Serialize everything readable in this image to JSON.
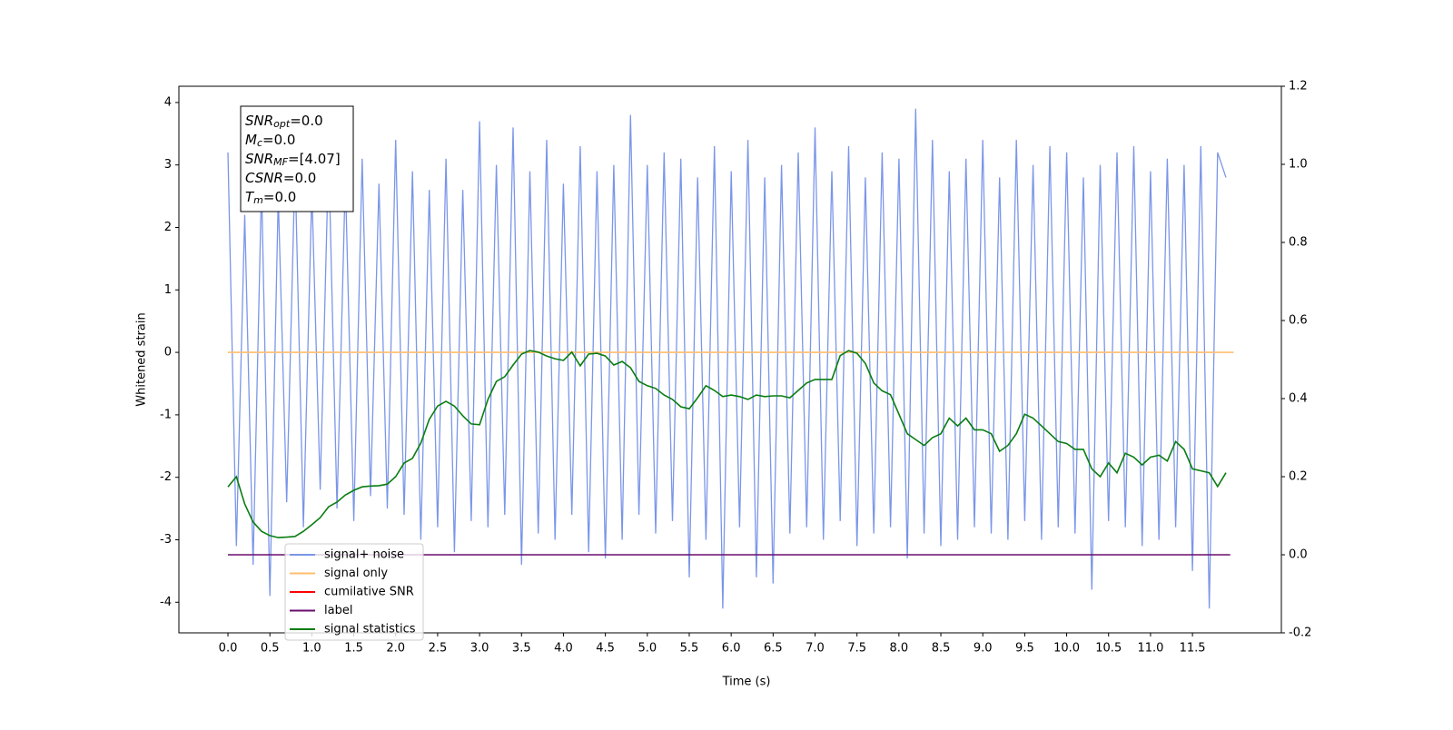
{
  "chart_data": {
    "type": "line",
    "xlabel": "Time (s)",
    "ylabel": "Whitened strain",
    "xlim": [
      -0.585,
      12.56
    ],
    "ylim": [
      -4.49,
      4.26
    ],
    "y2lim": [
      -0.2,
      1.2
    ],
    "xticks": [
      {
        "value": 0,
        "label": "0.0"
      },
      0.5,
      {
        "value": 1,
        "label": "1.0"
      },
      1.5,
      {
        "value": 2,
        "label": "2.0"
      },
      2.5,
      {
        "value": 3,
        "label": "3.0"
      },
      3.5,
      {
        "value": 4,
        "label": "4.0"
      },
      4.5,
      {
        "value": 5,
        "label": "5.0"
      },
      5.5,
      {
        "value": 6,
        "label": "6.0"
      },
      6.5,
      {
        "value": 7,
        "label": "7.0"
      },
      7.5,
      {
        "value": 8,
        "label": "8.0"
      },
      8.5,
      {
        "value": 9,
        "label": "9.0"
      },
      9.5,
      {
        "value": 10,
        "label": "10.0"
      },
      10.5,
      {
        "value": 11,
        "label": "11.0"
      },
      11.5
    ],
    "yticks": [
      -4,
      -3,
      -2,
      -1,
      0,
      1,
      2,
      3,
      4
    ],
    "y2ticks": [
      -0.2,
      {
        "value": 0,
        "label": "0.0"
      },
      0.2,
      0.4,
      0.6,
      0.8,
      {
        "value": 1,
        "label": "1.0"
      },
      1.2
    ],
    "x": [
      0,
      0.1,
      0.2,
      0.3,
      0.4,
      0.5,
      0.6,
      0.7,
      0.8,
      0.9,
      1,
      1.1,
      1.2,
      1.3,
      1.4,
      1.5,
      1.6,
      1.7,
      1.8,
      1.9,
      2,
      2.1,
      2.2,
      2.3,
      2.4,
      2.5,
      2.6,
      2.7,
      2.8,
      2.9,
      3,
      3.1,
      3.2,
      3.3,
      3.4,
      3.5,
      3.6,
      3.7,
      3.8,
      3.9,
      4,
      4.1,
      4.2,
      4.3,
      4.4,
      4.5,
      4.6,
      4.7,
      4.8,
      4.9,
      5,
      5.1,
      5.2,
      5.3,
      5.4,
      5.5,
      5.6,
      5.7,
      5.8,
      5.9,
      6,
      6.1,
      6.2,
      6.3,
      6.4,
      6.5,
      6.6,
      6.7,
      6.8,
      6.9,
      7,
      7.1,
      7.2,
      7.3,
      7.4,
      7.5,
      7.6,
      7.7,
      7.8,
      7.9,
      8,
      8.1,
      8.2,
      8.3,
      8.4,
      8.5,
      8.6,
      8.7,
      8.8,
      8.9,
      9,
      9.1,
      9.2,
      9.3,
      9.4,
      9.5,
      9.6,
      9.7,
      9.8,
      9.9,
      10,
      10.1,
      10.2,
      10.3,
      10.4,
      10.5,
      10.6,
      10.7,
      10.8,
      10.9,
      11,
      11.1,
      11.2,
      11.3,
      11.4,
      11.5,
      11.6,
      11.7,
      11.8,
      11.9
    ],
    "series": [
      {
        "name": "signal+ noise",
        "color": "#7b96e8",
        "axis": "y",
        "values": [
          3.2,
          -3.1,
          2.2,
          -3.4,
          2.7,
          -3.9,
          2.5,
          -2.4,
          3.0,
          -2.8,
          2.6,
          -2.2,
          3.2,
          -2.5,
          2.8,
          -2.7,
          3.1,
          -2.3,
          2.7,
          -2.5,
          3.4,
          -2.6,
          2.9,
          -3.0,
          2.6,
          -2.8,
          3.1,
          -3.2,
          2.6,
          -2.7,
          3.7,
          -2.8,
          3.0,
          -2.6,
          3.6,
          -3.4,
          2.9,
          -2.9,
          3.4,
          -3.0,
          2.7,
          -2.6,
          3.3,
          -3.2,
          2.9,
          -3.3,
          3.0,
          -3.0,
          3.8,
          -2.6,
          3.0,
          -2.9,
          3.2,
          -2.7,
          3.1,
          -3.6,
          2.8,
          -3.0,
          3.3,
          -4.1,
          2.9,
          -2.8,
          3.4,
          -3.6,
          2.8,
          -3.7,
          3.0,
          -2.9,
          3.2,
          -2.8,
          3.6,
          -3.0,
          2.9,
          -2.7,
          3.3,
          -3.1,
          2.8,
          -2.9,
          3.2,
          -2.8,
          3.1,
          -3.3,
          3.9,
          -2.9,
          3.4,
          -3.1,
          2.9,
          -3.0,
          3.1,
          -2.8,
          3.4,
          -2.9,
          2.8,
          -3.0,
          3.4,
          -2.7,
          3.0,
          -3.0,
          3.3,
          -2.8,
          3.2,
          -2.9,
          2.8,
          -3.8,
          3.0,
          -2.7,
          3.2,
          -2.8,
          3.3,
          -3.1,
          2.9,
          -3.0,
          3.1,
          -2.8,
          3.0,
          -3.5,
          3.3,
          -4.1,
          3.2,
          2.8
        ]
      },
      {
        "name": "signal only",
        "color": "#ffbd6e",
        "axis": "y",
        "x": [
          0,
          11.99
        ],
        "values": [
          0,
          0
        ]
      },
      {
        "name": "cumilative SNR",
        "color": "#ff0000",
        "axis": "y",
        "x": [],
        "values": []
      },
      {
        "name": "label",
        "color": "#6a0d6e",
        "axis": "y2",
        "x": [
          0,
          11.95
        ],
        "values": [
          0,
          0
        ]
      },
      {
        "name": "signal statistics",
        "color": "#0a7d12",
        "axis": "y2",
        "values": [
          0.174,
          0.2,
          0.13,
          0.084,
          0.06,
          0.049,
          0.044,
          0.045,
          0.047,
          0.06,
          0.077,
          0.095,
          0.123,
          0.135,
          0.153,
          0.165,
          0.174,
          0.176,
          0.177,
          0.181,
          0.2,
          0.235,
          0.247,
          0.286,
          0.347,
          0.381,
          0.393,
          0.381,
          0.356,
          0.335,
          0.333,
          0.398,
          0.444,
          0.456,
          0.486,
          0.514,
          0.523,
          0.519,
          0.509,
          0.502,
          0.498,
          0.519,
          0.484,
          0.514,
          0.516,
          0.509,
          0.486,
          0.495,
          0.479,
          0.444,
          0.433,
          0.426,
          0.409,
          0.398,
          0.379,
          0.374,
          0.402,
          0.433,
          0.421,
          0.405,
          0.409,
          0.405,
          0.398,
          0.409,
          0.405,
          0.407,
          0.407,
          0.402,
          0.421,
          0.44,
          0.449,
          0.449,
          0.449,
          0.51,
          0.523,
          0.516,
          0.49,
          0.44,
          0.42,
          0.41,
          0.36,
          0.31,
          0.295,
          0.28,
          0.3,
          0.31,
          0.35,
          0.33,
          0.35,
          0.32,
          0.32,
          0.31,
          0.265,
          0.28,
          0.31,
          0.36,
          0.35,
          0.33,
          0.31,
          0.29,
          0.285,
          0.27,
          0.27,
          0.22,
          0.2,
          0.235,
          0.21,
          0.26,
          0.25,
          0.23,
          0.25,
          0.255,
          0.24,
          0.29,
          0.27,
          0.22,
          0.215,
          0.21,
          0.175,
          0.21
        ]
      }
    ],
    "annotations": [
      {
        "name": "SNR",
        "sub": "opt",
        "text": "=0.0"
      },
      {
        "name": "M",
        "sub": "c",
        "text": "=0.0"
      },
      {
        "name": "SNR",
        "sub": "MF",
        "text": "=[4.07]"
      },
      {
        "name": "CSNR",
        "text": "=0.0"
      },
      {
        "name": "T",
        "sub": "m",
        "text": "=0.0"
      }
    ],
    "legend": "lower left"
  }
}
